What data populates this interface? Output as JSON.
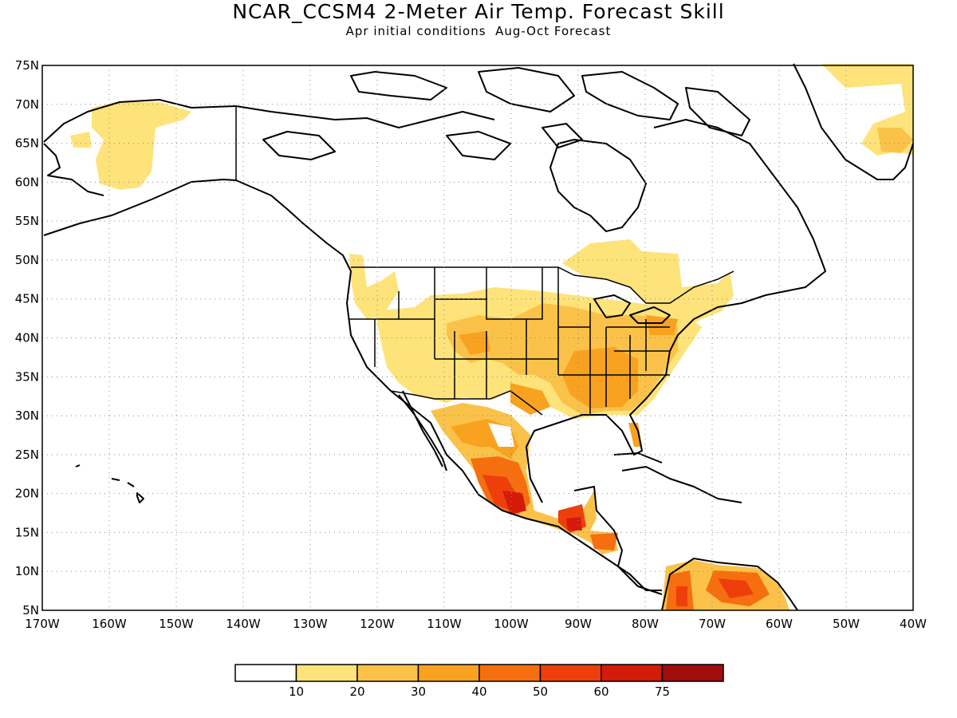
{
  "title": "NCAR_CCSM4 2-Meter Air Temp. Forecast Skill",
  "subtitle": "Apr initial conditions  Aug-Oct Forecast",
  "map": {
    "region": "North America",
    "lon_range": [
      -170,
      -40
    ],
    "lat_range": [
      5,
      75
    ],
    "lat_labels": [
      "75N",
      "70N",
      "65N",
      "60N",
      "55N",
      "50N",
      "45N",
      "40N",
      "35N",
      "30N",
      "25N",
      "20N",
      "15N",
      "10N",
      "5N"
    ],
    "lon_labels": [
      "170W",
      "160W",
      "150W",
      "140W",
      "130W",
      "120W",
      "110W",
      "100W",
      "90W",
      "80W",
      "70W",
      "60W",
      "50W",
      "40W"
    ],
    "grid": true
  },
  "colorbar": {
    "labels": [
      "10",
      "20",
      "30",
      "40",
      "50",
      "60",
      "75"
    ],
    "colors": [
      "#ffffff",
      "#fde37a",
      "#fbc24a",
      "#f9a21f",
      "#f56f10",
      "#ee3e0c",
      "#d41b0a",
      "#a10d0c"
    ]
  }
}
